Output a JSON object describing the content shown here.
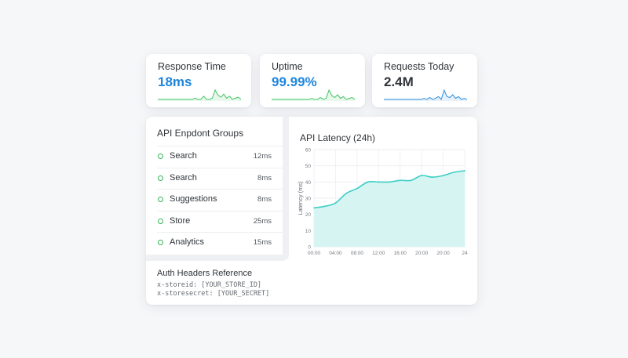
{
  "stats": [
    {
      "label": "Response Time",
      "value": "18ms",
      "spark_color": "#43c463",
      "spark": [
        1,
        1,
        1,
        1,
        1,
        1,
        1,
        1,
        1,
        1,
        1,
        1,
        1,
        2,
        1,
        1,
        4,
        1,
        1,
        2,
        10,
        5,
        3,
        6,
        2,
        4,
        1,
        2,
        3,
        1
      ]
    },
    {
      "label": "Uptime",
      "value": "99.99%",
      "spark_color": "#43c463",
      "spark": [
        1,
        1,
        1,
        1,
        1,
        1,
        1,
        1,
        1,
        1,
        1,
        1,
        1,
        1,
        2,
        1,
        1,
        3,
        1,
        2,
        11,
        5,
        3,
        6,
        2,
        4,
        1,
        2,
        3,
        1
      ]
    },
    {
      "label": "Requests Today",
      "value": "2.4M",
      "spark_color": "#2f8fdc",
      "spark": [
        1,
        1,
        1,
        1,
        1,
        1,
        1,
        1,
        1,
        1,
        1,
        1,
        1,
        1,
        2,
        1,
        3,
        1,
        2,
        4,
        1,
        11,
        4,
        3,
        6,
        2,
        4,
        1,
        2,
        1
      ]
    }
  ],
  "groups": {
    "title": "API Enpdont Groups",
    "items": [
      {
        "name": "Search",
        "ms": "12ms"
      },
      {
        "name": "Search",
        "ms": "8ms"
      },
      {
        "name": "Suggestions",
        "ms": "8ms"
      },
      {
        "name": "Store",
        "ms": "25ms"
      },
      {
        "name": "Analytics",
        "ms": "15ms"
      }
    ],
    "status_color": "#35b45b"
  },
  "chart_data": {
    "type": "area",
    "title": "API Latency (24h)",
    "ylabel": "Latency (ms)",
    "xlabel": "",
    "ylim": [
      0,
      60
    ],
    "yticks": [
      0,
      10,
      20,
      30,
      40,
      50,
      60
    ],
    "xticks": [
      "00:00",
      "04:00",
      "08:00",
      "12:00",
      "16:00",
      "20:00",
      "20:00",
      "24"
    ],
    "x": [
      0,
      0.5,
      1,
      1.5,
      2,
      2.5,
      3,
      3.5,
      4,
      4.5,
      5,
      5.5,
      6,
      6.5,
      7
    ],
    "values": [
      24,
      25,
      27,
      33,
      36,
      40,
      40,
      40,
      41,
      41,
      44,
      43,
      44,
      46,
      47
    ],
    "color": "#3dcfc6",
    "fill": "#d6f4f1",
    "grid": true
  },
  "auth": {
    "title": "Auth Headers Reference",
    "lines": [
      "x-storeid: [YOUR_STORE_ID]",
      "x-storesecret: [YOUR_SECRET]"
    ]
  }
}
